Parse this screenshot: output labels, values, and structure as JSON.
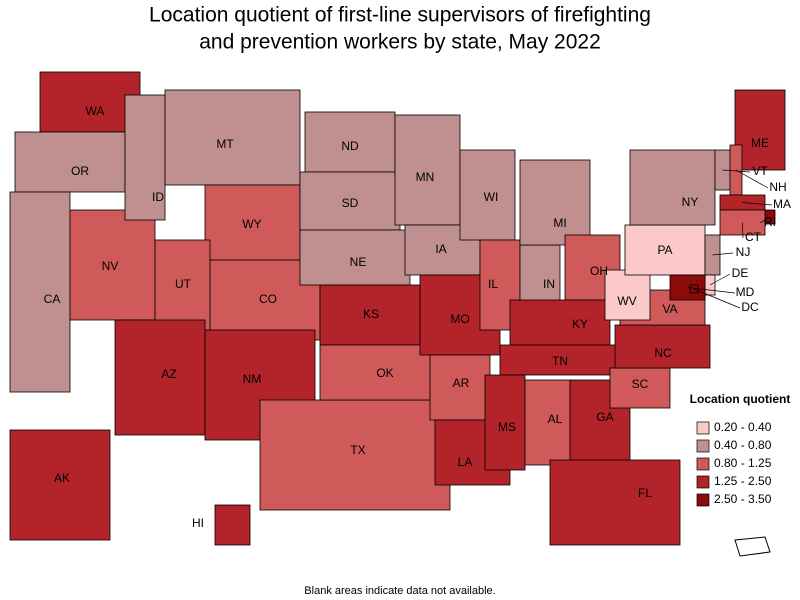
{
  "title": [
    "Location quotient of first-line supervisors of firefighting",
    "and prevention workers by state, May 2022"
  ],
  "legend": {
    "title": "Location quotient",
    "items": [
      {
        "label": "0.20 - 0.40",
        "color": "#fcc9c9"
      },
      {
        "label": "0.40 - 0.80",
        "color": "#c09090"
      },
      {
        "label": "0.80 - 1.25",
        "color": "#d05a5a"
      },
      {
        "label": "1.25 - 2.50",
        "color": "#b3232a"
      },
      {
        "label": "2.50 - 3.50",
        "color": "#8b0a0a"
      }
    ]
  },
  "states": [
    {
      "label": "WA",
      "color": "#b3232a"
    },
    {
      "label": "OR",
      "color": "#c09090"
    },
    {
      "label": "CA",
      "color": "#c09090"
    },
    {
      "label": "NV",
      "color": "#d05a5a"
    },
    {
      "label": "ID",
      "color": "#c09090"
    },
    {
      "label": "MT",
      "color": "#c09090"
    },
    {
      "label": "WY",
      "color": "#d05a5a"
    },
    {
      "label": "UT",
      "color": "#d05a5a"
    },
    {
      "label": "CO",
      "color": "#d05a5a"
    },
    {
      "label": "AZ",
      "color": "#b3232a"
    },
    {
      "label": "NM",
      "color": "#b3232a"
    },
    {
      "label": "ND",
      "color": "#c09090"
    },
    {
      "label": "SD",
      "color": "#c09090"
    },
    {
      "label": "NE",
      "color": "#c09090"
    },
    {
      "label": "KS",
      "color": "#b3232a"
    },
    {
      "label": "TX",
      "color": "#d05a5a"
    },
    {
      "label": "OK",
      "color": "#d05a5a"
    },
    {
      "label": "MN",
      "color": "#c09090"
    },
    {
      "label": "IA",
      "color": "#c09090"
    },
    {
      "label": "MO",
      "color": "#b3232a"
    },
    {
      "label": "AR",
      "color": "#d05a5a"
    },
    {
      "label": "LA",
      "color": "#b3232a"
    },
    {
      "label": "WI",
      "color": "#c09090"
    },
    {
      "label": "IL",
      "color": "#d05a5a"
    },
    {
      "label": "IN",
      "color": "#c09090"
    },
    {
      "label": "MI",
      "color": "#c09090"
    },
    {
      "label": "OH",
      "color": "#d05a5a"
    },
    {
      "label": "KY",
      "color": "#b3232a"
    },
    {
      "label": "TN",
      "color": "#b3232a"
    },
    {
      "label": "MS",
      "color": "#b3232a"
    },
    {
      "label": "AL",
      "color": "#d05a5a"
    },
    {
      "label": "GA",
      "color": "#b3232a"
    },
    {
      "label": "FL",
      "color": "#b3232a"
    },
    {
      "label": "SC",
      "color": "#d05a5a"
    },
    {
      "label": "NC",
      "color": "#b3232a"
    },
    {
      "label": "VA",
      "color": "#d05a5a"
    },
    {
      "label": "WV",
      "color": "#fcc9c9"
    },
    {
      "label": "PA",
      "color": "#fcc9c9"
    },
    {
      "label": "NY",
      "color": "#c09090"
    },
    {
      "label": "ME",
      "color": "#b3232a"
    },
    {
      "label": "VT",
      "color": "#c09090"
    },
    {
      "label": "NH",
      "color": "#d05a5a"
    },
    {
      "label": "MA",
      "color": "#b3232a"
    },
    {
      "label": "RI",
      "color": "#8b0a0a"
    },
    {
      "label": "CT",
      "color": "#d05a5a"
    },
    {
      "label": "NJ",
      "color": "#c09090"
    },
    {
      "label": "DE",
      "color": "#fcc9c9"
    },
    {
      "label": "MD",
      "color": "#8b0a0a"
    },
    {
      "label": "DC",
      "color": "#8b0a0a"
    },
    {
      "label": "AK",
      "color": "#b3232a"
    },
    {
      "label": "HI",
      "color": "#b3232a"
    }
  ],
  "footnote": "Blank areas indicate data not available."
}
